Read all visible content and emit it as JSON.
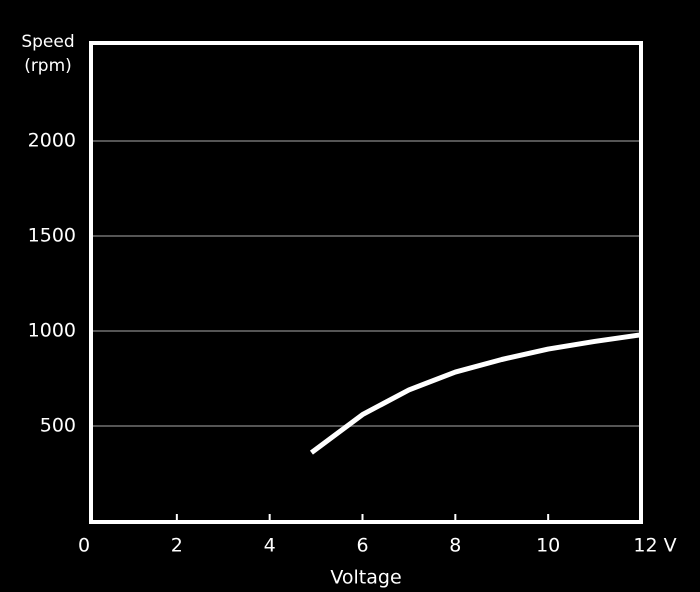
{
  "chart_data": {
    "type": "line",
    "y_label": "Speed (rpm)",
    "x_label": "Voltage",
    "x": [
      4.9,
      6,
      7,
      8,
      9,
      10,
      11,
      12
    ],
    "series": [
      {
        "color": "#ffffff",
        "values": [
          360,
          560,
          690,
          784,
          850,
          905,
          945,
          980
        ]
      }
    ],
    "xlim": [
      0,
      12
    ],
    "xticks": [
      0,
      2,
      4,
      6,
      8,
      10,
      {
        "value": 12,
        "label": "12 V"
      }
    ],
    "ylim": [
      0,
      2500
    ],
    "yticks": [
      500,
      1000,
      1500,
      2000
    ],
    "grid": true,
    "background": "#000000"
  }
}
